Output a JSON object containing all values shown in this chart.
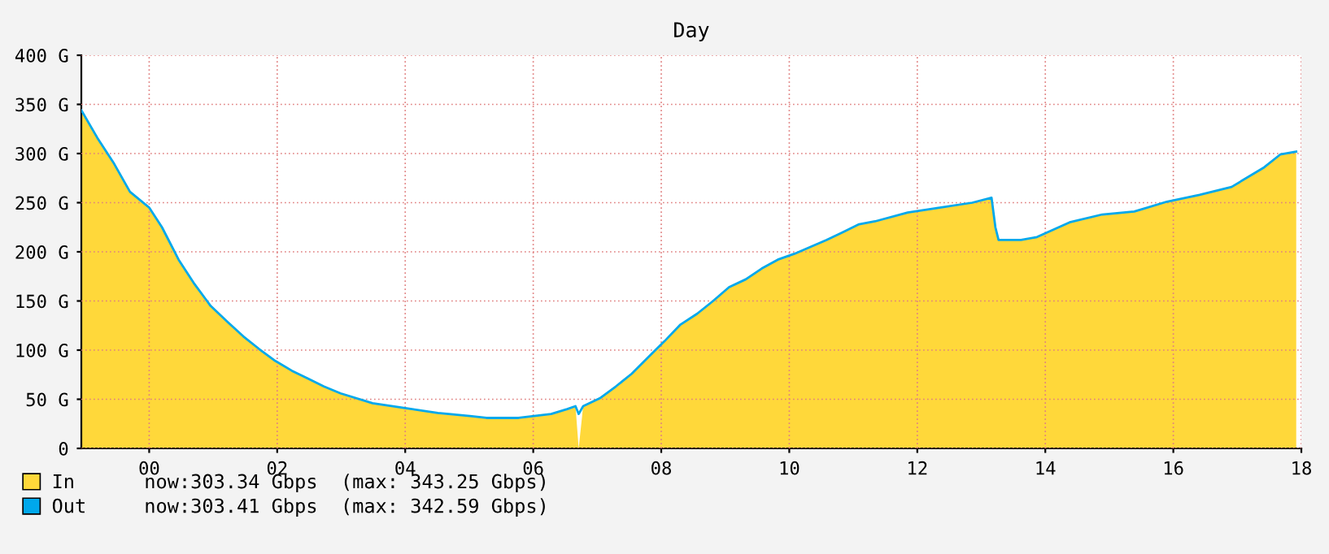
{
  "chart_data": {
    "type": "area",
    "title": "Day",
    "x": [
      -1.06,
      -0.81,
      -0.56,
      -0.3,
      0,
      0.2,
      0.46,
      0.71,
      0.96,
      1.22,
      1.47,
      1.72,
      1.97,
      2.23,
      2.48,
      2.73,
      2.99,
      3.49,
      4.0,
      4.51,
      5.01,
      5.27,
      5.77,
      6.28,
      6.53,
      6.66,
      6.71,
      6.78,
      7.04,
      7.29,
      7.54,
      7.8,
      8.05,
      8.3,
      8.56,
      8.81,
      9.06,
      9.32,
      9.57,
      9.82,
      10.08,
      10.33,
      10.58,
      10.84,
      11.09,
      11.34,
      11.85,
      12.35,
      12.86,
      13.16,
      13.22,
      13.27,
      13.62,
      13.87,
      14.38,
      14.89,
      15.39,
      15.9,
      16.41,
      16.91,
      17.42,
      17.67,
      17.92
    ],
    "series": [
      {
        "name": "In      now:303.34 Gbps  (max: 343.25 Gbps)",
        "color": "#ffd83a",
        "values": [
          344,
          316,
          291,
          261,
          245,
          225,
          192,
          167,
          145,
          129,
          114,
          101,
          89,
          79,
          71,
          63,
          56,
          46,
          41,
          36,
          33,
          31,
          31,
          35,
          40,
          43,
          0,
          43,
          51,
          63,
          76,
          93,
          109,
          126,
          137,
          150,
          164,
          172,
          183,
          192,
          198,
          205,
          212,
          220,
          228,
          231,
          240,
          245,
          250,
          255,
          225,
          212,
          212,
          215,
          230,
          238,
          241,
          251,
          258,
          266,
          286,
          299,
          302
        ]
      },
      {
        "name": "Out     now:303.41 Gbps  (max: 342.59 Gbps)",
        "type": "line",
        "color": "#00a8ec",
        "values": [
          344,
          316,
          291,
          261,
          245,
          225,
          192,
          167,
          145,
          129,
          114,
          101,
          89,
          79,
          71,
          63,
          56,
          46,
          41,
          36,
          33,
          31,
          31,
          35,
          40,
          43,
          35,
          43,
          51,
          63,
          76,
          93,
          109,
          126,
          137,
          150,
          164,
          172,
          183,
          192,
          198,
          205,
          212,
          220,
          228,
          231,
          240,
          245,
          250,
          255,
          225,
          212,
          212,
          215,
          230,
          238,
          241,
          251,
          258,
          266,
          286,
          299,
          302
        ]
      }
    ],
    "xlim": [
      -1.06,
      18
    ],
    "xticks": [
      {
        "value": 0,
        "label": "00"
      },
      {
        "value": 2,
        "label": "02"
      },
      {
        "value": 4,
        "label": "04"
      },
      {
        "value": 6,
        "label": "06"
      },
      {
        "value": 8,
        "label": "08"
      },
      {
        "value": 10,
        "label": "10"
      },
      {
        "value": 12,
        "label": "12"
      },
      {
        "value": 14,
        "label": "14"
      },
      {
        "value": 16,
        "label": "16"
      },
      {
        "value": 18,
        "label": "18"
      }
    ],
    "ylim": [
      0,
      400
    ],
    "yticks": [
      0,
      {
        "value": 50,
        "label": "50 G"
      },
      {
        "value": 100,
        "label": "100 G"
      },
      {
        "value": 150,
        "label": "150 G"
      },
      {
        "value": 200,
        "label": "200 G"
      },
      {
        "value": 250,
        "label": "250 G"
      },
      {
        "value": 300,
        "label": "300 G"
      },
      {
        "value": 350,
        "label": "350 G"
      },
      {
        "value": 400,
        "label": "400 G"
      }
    ],
    "grid": true,
    "legend": "bottom left"
  }
}
